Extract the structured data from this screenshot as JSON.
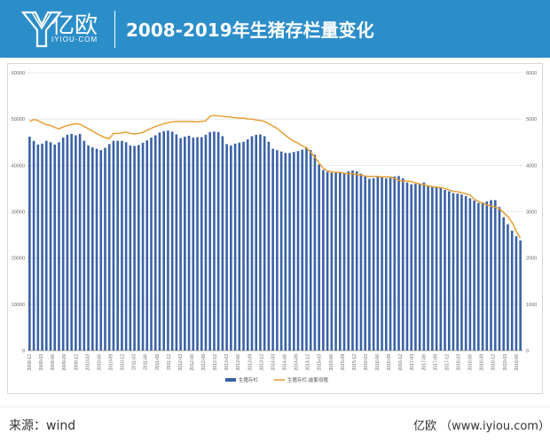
{
  "header": {
    "logo_text": "亿欧",
    "logo_sub": "IYIOU·COM",
    "title": "2008-2019年生猪存栏量变化"
  },
  "footer": {
    "source": "来源：wind",
    "site": "亿欧 （www.iyiou.com）"
  },
  "colors": {
    "header_bg": "#2c8ec9",
    "bar": "#3a62a6",
    "line": "#e49a2c"
  },
  "chart_data": {
    "type": "bar+line",
    "legend": [
      "生猪存栏",
      "生猪存栏:能繁母猪"
    ],
    "legend_position": "bottom",
    "grid": true,
    "y_left": {
      "min": 0,
      "max": 60000,
      "ticks": [
        "0",
        "10000",
        "20000",
        "30000",
        "40000",
        "50000",
        "60000"
      ]
    },
    "y_right": {
      "min": 0,
      "max": 6000,
      "ticks": [
        "0",
        "1000",
        "2000",
        "3000",
        "4000",
        "5000",
        "6000"
      ]
    },
    "x_tick_labels": [
      "2008-12",
      "2009-03",
      "2009-06",
      "2009-09",
      "2009-12",
      "2010-03",
      "2010-06",
      "2010-09",
      "2010-12",
      "2011-03",
      "2011-06",
      "2011-09",
      "2011-12",
      "2012-03",
      "2012-06",
      "2012-09",
      "2012-12",
      "2013-03",
      "2013-06",
      "2013-09",
      "2013-12",
      "2014-03",
      "2014-06",
      "2014-09",
      "2014-12",
      "2015-03",
      "2015-06",
      "2015-09",
      "2015-12",
      "2016-03",
      "2016-06",
      "2016-09",
      "2016-12",
      "2017-03",
      "2017-06",
      "2017-09",
      "2017-12",
      "2018-03",
      "2018-06",
      "2018-09",
      "2018-12",
      "2019-03",
      "2019-06"
    ],
    "series": [
      {
        "name": "生猪存栏",
        "type": "bar",
        "axis": "left",
        "values": [
          46200,
          45300,
          44500,
          44700,
          45300,
          45000,
          44500,
          45000,
          46000,
          46600,
          46800,
          46500,
          46800,
          45300,
          44300,
          43900,
          43600,
          43300,
          43800,
          44600,
          45300,
          45300,
          45300,
          45000,
          44300,
          44200,
          44400,
          44900,
          45400,
          46000,
          46500,
          47100,
          47400,
          47500,
          47300,
          46700,
          45900,
          46200,
          46400,
          46000,
          46100,
          46100,
          46600,
          47200,
          47300,
          47200,
          46300,
          44600,
          44300,
          44700,
          44900,
          45100,
          45600,
          46300,
          46600,
          46700,
          46300,
          45100,
          43600,
          43300,
          43000,
          42700,
          42700,
          42900,
          43100,
          43400,
          43800,
          43300,
          42300,
          40200,
          39000,
          38600,
          38400,
          38500,
          38500,
          38300,
          38700,
          38900,
          38700,
          38200,
          37600,
          37100,
          37200,
          37500,
          37500,
          37200,
          37300,
          37600,
          37700,
          37200,
          36300,
          35900,
          36000,
          35900,
          36300,
          35600,
          35400,
          35300,
          35100,
          34700,
          34400,
          34000,
          33900,
          33700,
          33400,
          32900,
          32400,
          31900,
          32000,
          32200,
          32500,
          32500,
          31000,
          28800,
          27300,
          25900,
          24700,
          23800
        ]
      },
      {
        "name": "生猪存栏:能繁母猪",
        "type": "line",
        "axis": "right",
        "values": [
          4950,
          4990,
          4970,
          4920,
          4880,
          4860,
          4820,
          4790,
          4830,
          4860,
          4880,
          4900,
          4890,
          4840,
          4790,
          4740,
          4690,
          4640,
          4600,
          4580,
          4690,
          4690,
          4700,
          4720,
          4690,
          4680,
          4690,
          4710,
          4760,
          4800,
          4840,
          4870,
          4900,
          4920,
          4940,
          4950,
          4950,
          4950,
          4950,
          4950,
          4940,
          4950,
          4960,
          5060,
          5080,
          5070,
          5060,
          5050,
          5040,
          5030,
          5020,
          5020,
          5000,
          5000,
          4980,
          4970,
          4950,
          4900,
          4850,
          4800,
          4720,
          4650,
          4580,
          4520,
          4480,
          4420,
          4380,
          4280,
          4180,
          4050,
          3940,
          3880,
          3860,
          3850,
          3850,
          3830,
          3820,
          3820,
          3800,
          3790,
          3770,
          3760,
          3760,
          3760,
          3750,
          3750,
          3750,
          3720,
          3680,
          3660,
          3660,
          3650,
          3620,
          3600,
          3580,
          3560,
          3540,
          3530,
          3520,
          3500,
          3470,
          3440,
          3430,
          3410,
          3390,
          3360,
          3270,
          3220,
          3180,
          3150,
          3120,
          3100,
          3060,
          2980,
          2900,
          2770,
          2580,
          2430
        ]
      }
    ]
  }
}
